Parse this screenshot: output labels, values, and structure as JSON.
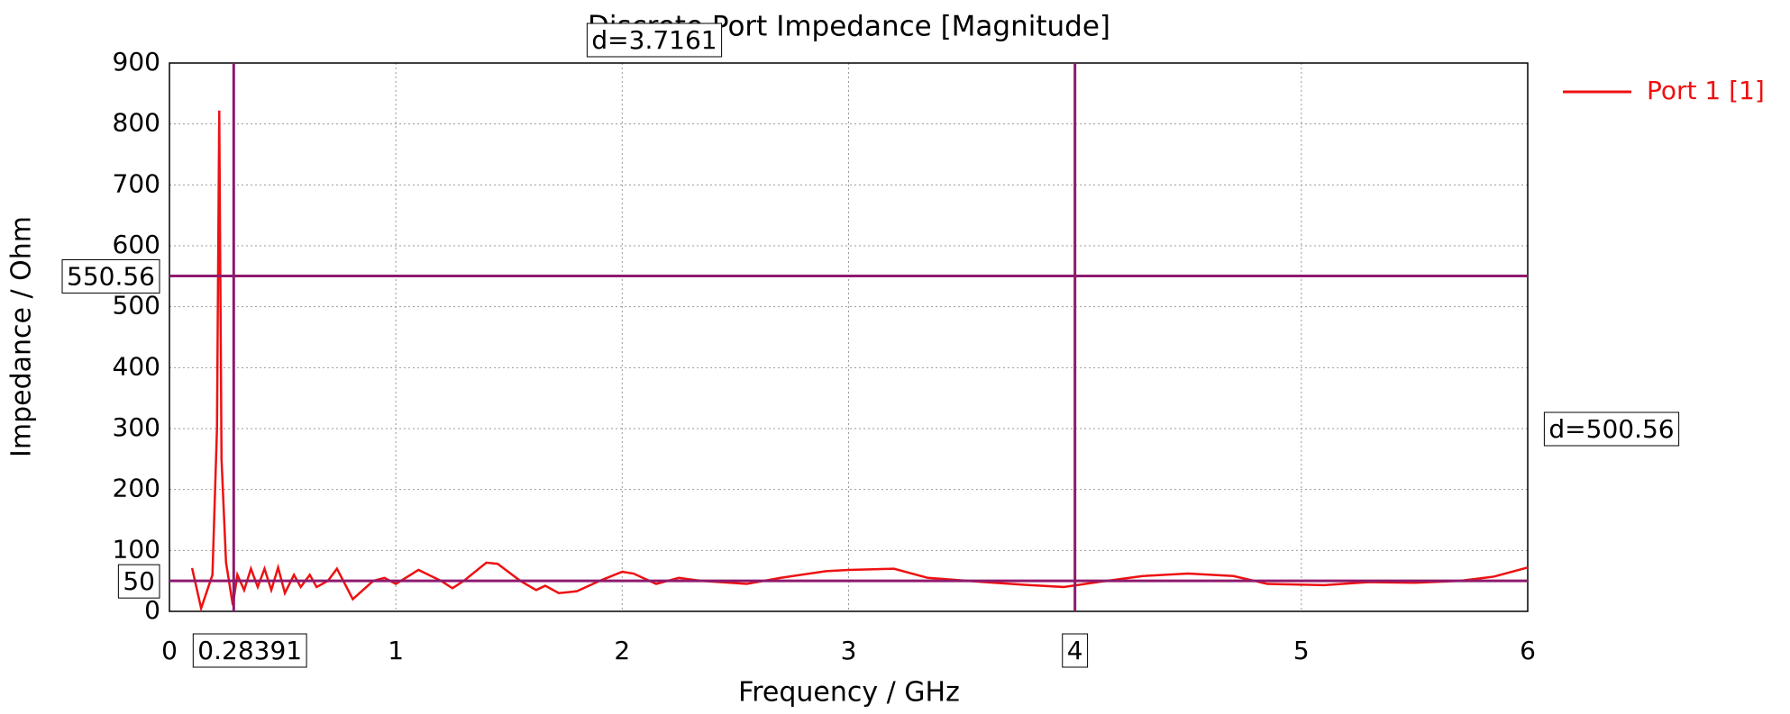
{
  "chart_data": {
    "type": "line",
    "title": "Discrete Port Impedance [Magnitude]",
    "x_label": "Frequency / GHz",
    "y_label": "Impedance / Ohm",
    "x": [
      0.1,
      0.14,
      0.19,
      0.21,
      0.22,
      0.23,
      0.25,
      0.28,
      0.3,
      0.33,
      0.36,
      0.39,
      0.42,
      0.45,
      0.48,
      0.51,
      0.55,
      0.58,
      0.62,
      0.65,
      0.7,
      0.74,
      0.81,
      0.9,
      0.95,
      1.0,
      1.1,
      1.2,
      1.25,
      1.3,
      1.4,
      1.45,
      1.55,
      1.62,
      1.66,
      1.72,
      1.8,
      1.9,
      2.0,
      2.05,
      2.15,
      2.25,
      2.35,
      2.55,
      2.7,
      2.9,
      3.0,
      3.2,
      3.35,
      3.6,
      3.8,
      3.95,
      4.1,
      4.3,
      4.5,
      4.7,
      4.85,
      5.1,
      5.3,
      5.5,
      5.7,
      5.85,
      6.0
    ],
    "series": [
      {
        "name": "Port 1 [1]",
        "color": "#ee1111",
        "values": [
          71,
          5,
          60,
          300,
          822,
          250,
          80,
          10,
          60,
          35,
          70,
          40,
          70,
          35,
          72,
          30,
          60,
          40,
          60,
          40,
          50,
          70,
          20,
          50,
          55,
          45,
          68,
          50,
          38,
          50,
          80,
          78,
          50,
          35,
          42,
          30,
          33,
          50,
          65,
          62,
          45,
          55,
          50,
          45,
          55,
          66,
          68,
          70,
          55,
          48,
          43,
          40,
          48,
          58,
          62,
          58,
          45,
          43,
          48,
          47,
          50,
          57,
          72
        ]
      }
    ],
    "xlim": [
      0,
      6
    ],
    "xticks": [
      0,
      1,
      2,
      3,
      4,
      5,
      6
    ],
    "ylim": [
      0,
      900
    ],
    "yticks": [
      0,
      100,
      200,
      300,
      400,
      500,
      600,
      700,
      800,
      900
    ],
    "grid": true,
    "legend": "right",
    "marker_color": "#8e1a6e",
    "vmarkers": [
      0.28391,
      4
    ],
    "hmarkers": [
      550.56,
      50
    ],
    "annotations": [
      "d=3.7161",
      "d=500.56"
    ]
  }
}
